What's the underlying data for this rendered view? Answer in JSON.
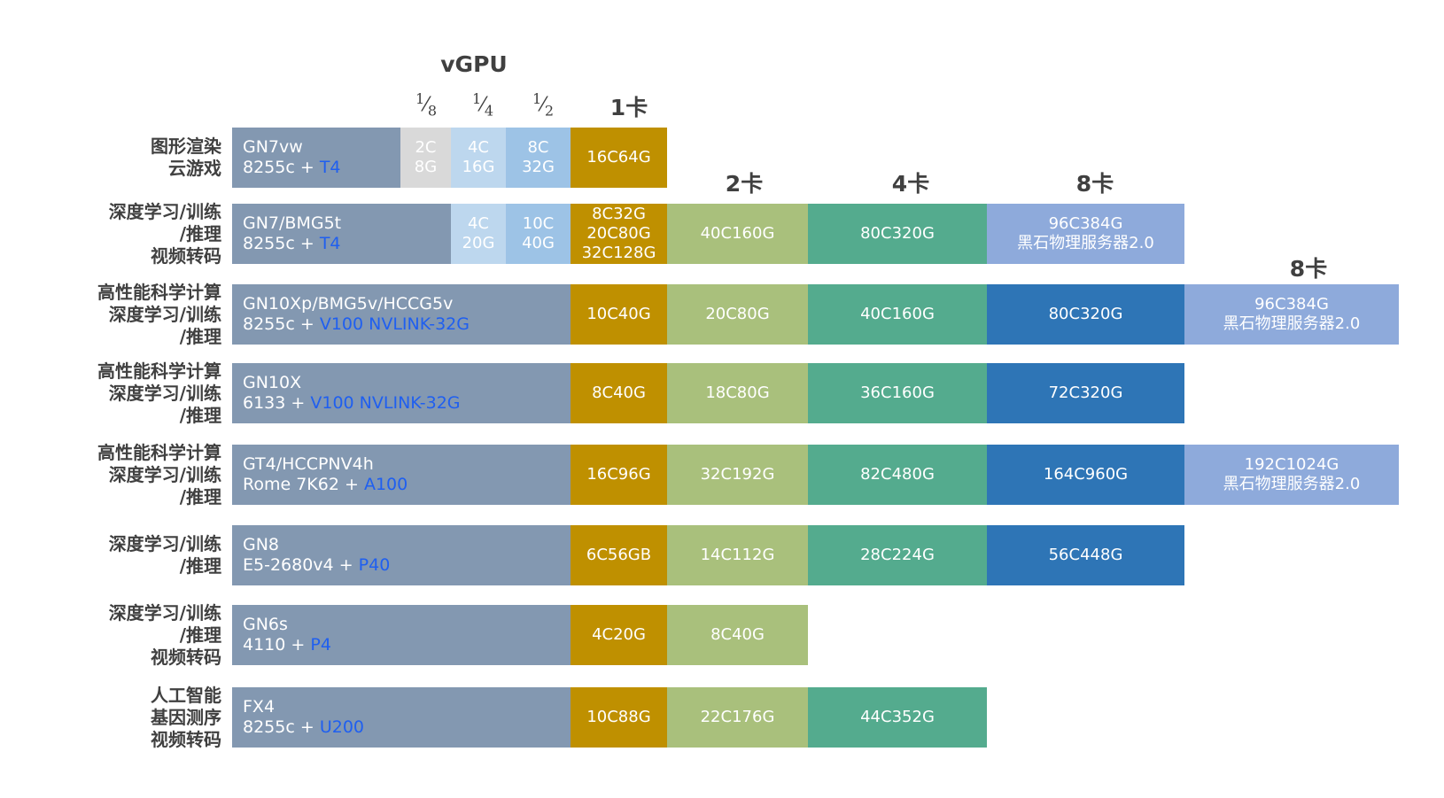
{
  "headers": {
    "vgpu": "vGPU",
    "fractions": [
      {
        "num": "1",
        "den": "8"
      },
      {
        "num": "1",
        "den": "4"
      },
      {
        "num": "1",
        "den": "2"
      }
    ],
    "card1": "1卡",
    "card2": "2卡",
    "card4": "4卡",
    "card8": "8卡",
    "card8_ext": "8卡"
  },
  "colors": {
    "model": "#8398b1",
    "vgpu_1_8": "#d9d9d9",
    "vgpu_1_4": "#bdd7ee",
    "vgpu_1_2": "#9dc3e6",
    "card1": "#bf9000",
    "card2": "#a9c07c",
    "card4": "#54ab8e",
    "card8": "#2e75b6",
    "card8_bm": "#8eaadb",
    "gpu_text": "#1f5ff0"
  },
  "rows": [
    {
      "label": [
        "图形渲染",
        "云游戏"
      ],
      "model": "GN7vw",
      "cpu": "8255c",
      "plus": "+",
      "gpu": "T4",
      "vgpu_1_8": [
        "2C",
        "8G"
      ],
      "vgpu_1_4": [
        "4C",
        "16G"
      ],
      "vgpu_1_2": [
        "8C",
        "32G"
      ],
      "card1": [
        "16C64G"
      ]
    },
    {
      "label": [
        "深度学习/训练",
        "/推理",
        "视频转码"
      ],
      "model": "GN7/BMG5t",
      "cpu": "8255c",
      "plus": "+",
      "gpu": "T4",
      "vgpu_1_4": [
        "4C",
        "20G"
      ],
      "vgpu_1_2": [
        "10C",
        "40G"
      ],
      "card1": [
        "8C32G",
        "20C80G",
        "32C128G"
      ],
      "card2": [
        "40C160G"
      ],
      "card4": [
        "80C320G"
      ],
      "card8_bm": [
        "96C384G",
        "黑石物理服务器2.0"
      ]
    },
    {
      "label": [
        "高性能科学计算",
        "深度学习/训练",
        "/推理"
      ],
      "model": "GN10Xp/BMG5v/HCCG5v",
      "cpu": "8255c",
      "plus": "+",
      "gpu": "V100 NVLINK-32G",
      "card1": [
        "10C40G"
      ],
      "card2": [
        "20C80G"
      ],
      "card4": [
        "40C160G"
      ],
      "card8": [
        "80C320G"
      ],
      "ext": [
        "96C384G",
        "黑石物理服务器2.0"
      ]
    },
    {
      "label": [
        "高性能科学计算",
        "深度学习/训练",
        "/推理"
      ],
      "model": "GN10X",
      "cpu": "6133",
      "plus": "+",
      "gpu": "V100 NVLINK-32G",
      "card1": [
        "8C40G"
      ],
      "card2": [
        "18C80G"
      ],
      "card4": [
        "36C160G"
      ],
      "card8": [
        "72C320G"
      ]
    },
    {
      "label": [
        "高性能科学计算",
        "深度学习/训练",
        "/推理"
      ],
      "model": "GT4/HCCPNV4h",
      "cpu": "Rome 7K62",
      "plus": "+",
      "gpu": "A100",
      "card1": [
        "16C96G"
      ],
      "card2": [
        "32C192G"
      ],
      "card4": [
        "82C480G"
      ],
      "card8": [
        "164C960G"
      ],
      "ext": [
        "192C1024G",
        "黑石物理服务器2.0"
      ]
    },
    {
      "label": [
        "深度学习/训练",
        "/推理"
      ],
      "model": "GN8",
      "cpu": "E5-2680v4",
      "plus": "+",
      "gpu": "P40",
      "card1": [
        "6C56GB"
      ],
      "card2": [
        "14C112G"
      ],
      "card4": [
        "28C224G"
      ],
      "card8": [
        "56C448G"
      ]
    },
    {
      "label": [
        "深度学习/训练",
        "/推理",
        "视频转码"
      ],
      "model": "GN6s",
      "cpu": "4110",
      "plus": "+",
      "gpu": "P4",
      "card1": [
        "4C20G"
      ],
      "card2": [
        "8C40G"
      ]
    },
    {
      "label": [
        "人工智能",
        "基因测序",
        "视频转码"
      ],
      "model": "FX4",
      "cpu": "8255c",
      "plus": "+",
      "gpu": "U200",
      "card1": [
        "10C88G"
      ],
      "card2": [
        "22C176G"
      ],
      "card4": [
        "44C352G"
      ]
    }
  ]
}
